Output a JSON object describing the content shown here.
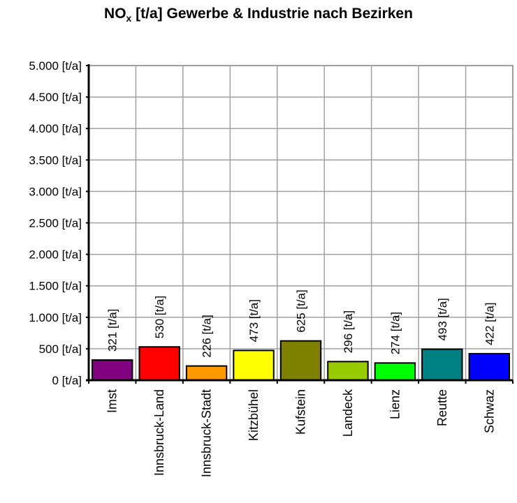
{
  "title": {
    "main": "NO",
    "sub": "x",
    "rest": " [t/a] Gewerbe & Industrie nach Bezirken"
  },
  "chart_data": {
    "type": "bar",
    "title": "NOx [t/a] Gewerbe & Industrie nach Bezirken",
    "xlabel": "",
    "ylabel": "",
    "ylim": [
      0,
      5000
    ],
    "grid": true,
    "legend": null,
    "yticks": [
      "0 [t/a]",
      "500 [t/a]",
      "1.000 [t/a]",
      "1.500 [t/a]",
      "2.000 [t/a]",
      "2.500 [t/a]",
      "3.000 [t/a]",
      "3.500 [t/a]",
      "4.000 [t/a]",
      "4.500 [t/a]",
      "5.000 [t/a]"
    ],
    "categories": [
      "Imst",
      "Innsbruck-Land",
      "Innsbruck-Stadt",
      "Kitzbühel",
      "Kufstein",
      "Landeck",
      "Lienz",
      "Reutte",
      "Schwaz"
    ],
    "values": [
      321,
      530,
      226,
      473,
      625,
      296,
      274,
      493,
      422
    ],
    "value_labels": [
      "321 [t/a]",
      "530 [t/a]",
      "226 [t/a]",
      "473 [t/a]",
      "625 [t/a]",
      "296 [t/a]",
      "274 [t/a]",
      "493 [t/a]",
      "422 [t/a]"
    ],
    "colors": [
      "#800080",
      "#ff0000",
      "#ff9900",
      "#ffff00",
      "#808000",
      "#99cc00",
      "#00ff00",
      "#008080",
      "#0000ff"
    ]
  }
}
